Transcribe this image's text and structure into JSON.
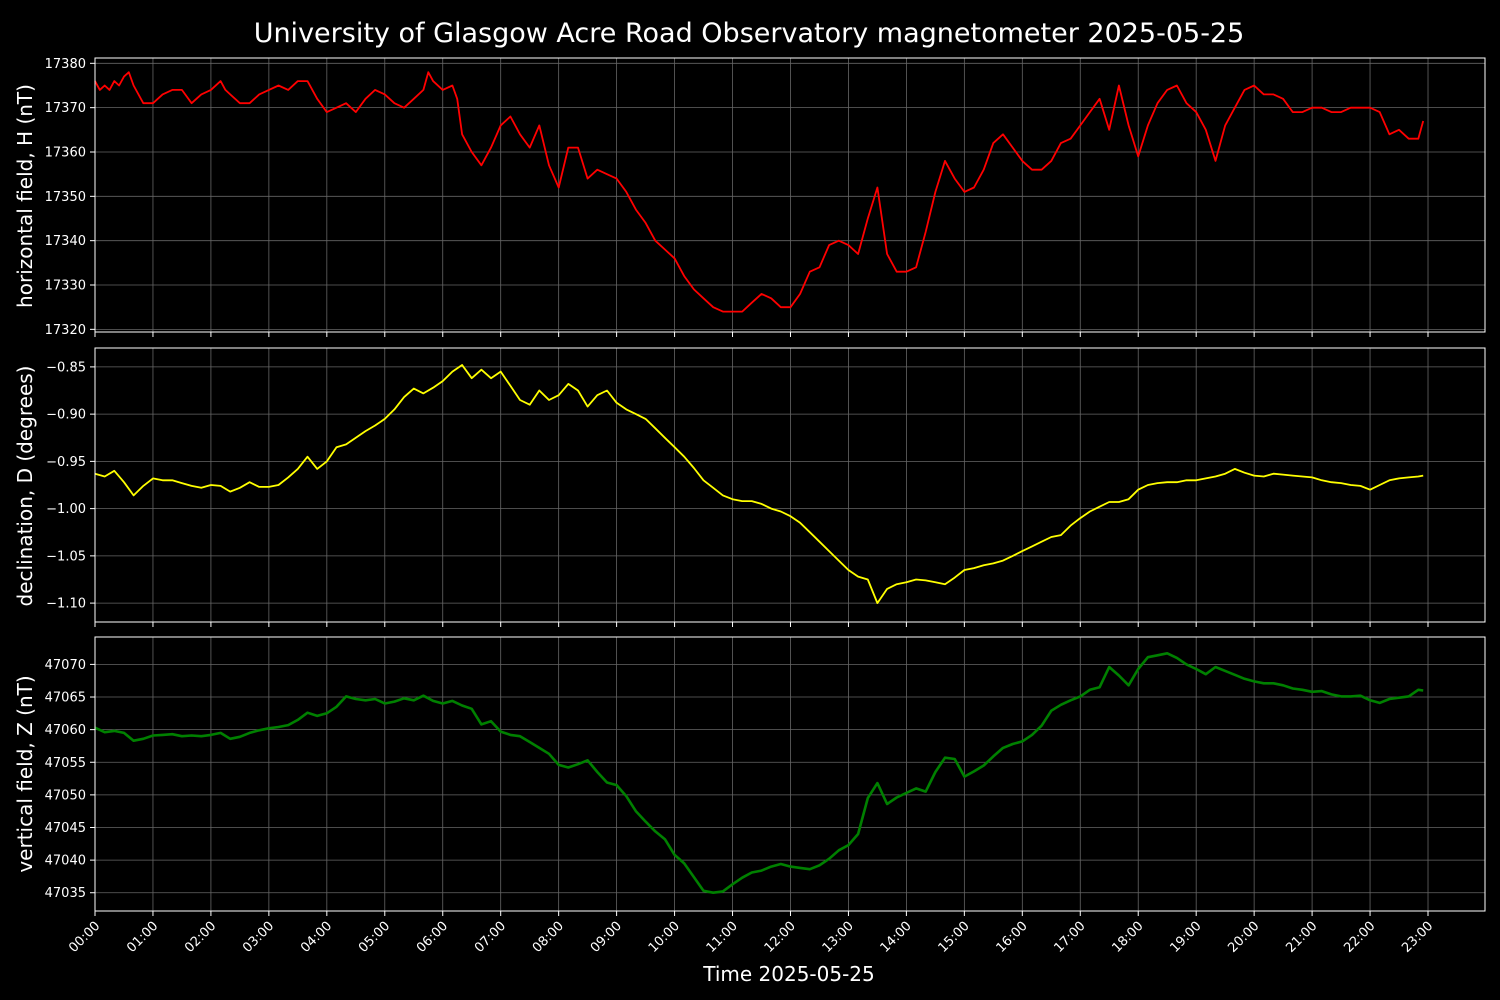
{
  "figure": {
    "title": "University of Glasgow Acre Road Observatory magnetometer 2025-05-25",
    "background": "#000000",
    "foreground": "#ffffff",
    "grid_color": "#666666"
  },
  "chart_data": [
    {
      "type": "line",
      "panel": "top",
      "title": "",
      "xlabel": "",
      "ylabel": "horizontal field, H (nT)",
      "xlim": [
        "00:00",
        "23:59"
      ],
      "ylim": [
        17319.4,
        17381.2
      ],
      "yticks": [
        17320,
        17330,
        17340,
        17350,
        17360,
        17370,
        17380
      ],
      "grid": true,
      "series": [
        {
          "color": "#ff0000",
          "x": [
            "00:00",
            "00:05",
            "00:10",
            "00:15",
            "00:20",
            "00:25",
            "00:30",
            "00:35",
            "00:40",
            "00:50",
            "01:00",
            "01:10",
            "01:20",
            "01:30",
            "01:40",
            "01:45",
            "01:50",
            "02:00",
            "02:10",
            "02:15",
            "02:20",
            "02:30",
            "02:40",
            "02:50",
            "03:00",
            "03:10",
            "03:20",
            "03:30",
            "03:40",
            "03:50",
            "04:00",
            "04:10",
            "04:20",
            "04:30",
            "04:40",
            "04:50",
            "05:00",
            "05:10",
            "05:20",
            "05:30",
            "05:40",
            "05:45",
            "05:50",
            "06:00",
            "06:10",
            "06:15",
            "06:20",
            "06:30",
            "06:40",
            "06:50",
            "07:00",
            "07:10",
            "07:20",
            "07:30",
            "07:40",
            "07:50",
            "08:00",
            "08:10",
            "08:20",
            "08:30",
            "08:40",
            "08:50",
            "09:00",
            "09:10",
            "09:20",
            "09:30",
            "09:40",
            "09:50",
            "10:00",
            "10:10",
            "10:20",
            "10:30",
            "10:40",
            "10:50",
            "11:00",
            "11:10",
            "11:20",
            "11:30",
            "11:40",
            "11:50",
            "12:00",
            "12:10",
            "12:20",
            "12:30",
            "12:40",
            "12:50",
            "13:00",
            "13:10",
            "13:20",
            "13:30",
            "13:40",
            "13:50",
            "14:00",
            "14:10",
            "14:20",
            "14:30",
            "14:40",
            "14:50",
            "15:00",
            "15:10",
            "15:20",
            "15:30",
            "15:40",
            "15:50",
            "16:00",
            "16:10",
            "16:20",
            "16:30",
            "16:40",
            "16:50",
            "17:00",
            "17:10",
            "17:20",
            "17:30",
            "17:40",
            "17:50",
            "18:00",
            "18:10",
            "18:20",
            "18:30",
            "18:40",
            "18:50",
            "19:00",
            "19:10",
            "19:20",
            "19:30",
            "19:40",
            "19:50",
            "20:00",
            "20:10",
            "20:20",
            "20:30",
            "20:40",
            "20:50",
            "21:00",
            "21:10",
            "21:20",
            "21:30",
            "21:40",
            "21:50",
            "22:00",
            "22:10",
            "22:20",
            "22:30",
            "22:40",
            "22:50",
            "22:55"
          ],
          "y": [
            17376,
            17374,
            17375,
            17374,
            17376,
            17375,
            17377,
            17378,
            17375,
            17371,
            17371,
            17373,
            17374,
            17374,
            17371,
            17372,
            17373,
            17374,
            17376,
            17374,
            17373,
            17371,
            17371,
            17373,
            17374,
            17375,
            17374,
            17376,
            17376,
            17372,
            17369,
            17370,
            17371,
            17369,
            17372,
            17374,
            17373,
            17371,
            17370,
            17372,
            17374,
            17378,
            17376,
            17374,
            17375,
            17372,
            17364,
            17360,
            17357,
            17361,
            17366,
            17368,
            17364,
            17361,
            17366,
            17357,
            17352,
            17361,
            17361,
            17354,
            17356,
            17355,
            17354,
            17351,
            17347,
            17344,
            17340,
            17338,
            17336,
            17332,
            17329,
            17327,
            17325,
            17324,
            17324,
            17324,
            17326,
            17328,
            17327,
            17325,
            17325,
            17328,
            17333,
            17334,
            17339,
            17340,
            17339,
            17337,
            17345,
            17352,
            17337,
            17333,
            17333,
            17334,
            17342,
            17351,
            17358,
            17354,
            17351,
            17352,
            17356,
            17362,
            17364,
            17361,
            17358,
            17356,
            17356,
            17358,
            17362,
            17363,
            17366,
            17369,
            17372,
            17365,
            17375,
            17366,
            17359,
            17366,
            17371,
            17374,
            17375,
            17371,
            17369,
            17365,
            17358,
            17366,
            17370,
            17374,
            17375,
            17373,
            17373,
            17372,
            17369,
            17369,
            17370,
            17370,
            17369,
            17369,
            17370,
            17370,
            17370,
            17369,
            17364,
            17365,
            17363,
            17363,
            17367
          ]
        }
      ]
    },
    {
      "type": "line",
      "panel": "middle",
      "title": "",
      "xlabel": "",
      "ylabel": "declination, D (degrees)",
      "xlim": [
        "00:00",
        "23:59"
      ],
      "ylim": [
        -1.12,
        -0.83
      ],
      "yticks": [
        -1.1,
        -1.05,
        -1.0,
        -0.95,
        -0.9,
        -0.85
      ],
      "ytick_labels": [
        "−1.10",
        "−1.05",
        "−1.00",
        "−0.95",
        "−0.90",
        "−0.85"
      ],
      "grid": true,
      "series": [
        {
          "color": "#ffff00",
          "x": [
            "00:00",
            "00:10",
            "00:20",
            "00:30",
            "00:40",
            "00:50",
            "01:00",
            "01:10",
            "01:20",
            "01:30",
            "01:40",
            "01:50",
            "02:00",
            "02:10",
            "02:20",
            "02:30",
            "02:40",
            "02:50",
            "03:00",
            "03:10",
            "03:20",
            "03:30",
            "03:40",
            "03:50",
            "04:00",
            "04:10",
            "04:20",
            "04:30",
            "04:40",
            "04:50",
            "05:00",
            "05:10",
            "05:20",
            "05:30",
            "05:40",
            "05:50",
            "06:00",
            "06:10",
            "06:20",
            "06:30",
            "06:40",
            "06:50",
            "07:00",
            "07:10",
            "07:20",
            "07:30",
            "07:40",
            "07:50",
            "08:00",
            "08:10",
            "08:20",
            "08:30",
            "08:40",
            "08:50",
            "09:00",
            "09:10",
            "09:20",
            "09:30",
            "09:40",
            "09:50",
            "10:00",
            "10:10",
            "10:20",
            "10:30",
            "10:40",
            "10:50",
            "11:00",
            "11:10",
            "11:20",
            "11:30",
            "11:40",
            "11:50",
            "12:00",
            "12:10",
            "12:20",
            "12:30",
            "12:40",
            "12:50",
            "13:00",
            "13:10",
            "13:20",
            "13:30",
            "13:40",
            "13:50",
            "14:00",
            "14:10",
            "14:20",
            "14:30",
            "14:40",
            "14:50",
            "15:00",
            "15:10",
            "15:20",
            "15:30",
            "15:40",
            "15:50",
            "16:00",
            "16:10",
            "16:20",
            "16:30",
            "16:40",
            "16:50",
            "17:00",
            "17:10",
            "17:20",
            "17:30",
            "17:40",
            "17:50",
            "18:00",
            "18:10",
            "18:20",
            "18:30",
            "18:40",
            "18:50",
            "19:00",
            "19:10",
            "19:20",
            "19:30",
            "19:40",
            "19:50",
            "20:00",
            "20:10",
            "20:20",
            "20:30",
            "20:40",
            "20:50",
            "21:00",
            "21:10",
            "21:20",
            "21:30",
            "21:40",
            "21:50",
            "22:00",
            "22:10",
            "22:20",
            "22:30",
            "22:40",
            "22:50",
            "22:55"
          ],
          "y": [
            -0.963,
            -0.966,
            -0.96,
            -0.972,
            -0.986,
            -0.976,
            -0.968,
            -0.97,
            -0.97,
            -0.973,
            -0.976,
            -0.978,
            -0.975,
            -0.976,
            -0.982,
            -0.978,
            -0.972,
            -0.977,
            -0.977,
            -0.975,
            -0.967,
            -0.958,
            -0.945,
            -0.958,
            -0.95,
            -0.935,
            -0.932,
            -0.925,
            -0.918,
            -0.912,
            -0.905,
            -0.895,
            -0.882,
            -0.873,
            -0.878,
            -0.872,
            -0.865,
            -0.855,
            -0.848,
            -0.862,
            -0.853,
            -0.862,
            -0.855,
            -0.87,
            -0.885,
            -0.89,
            -0.875,
            -0.885,
            -0.88,
            -0.868,
            -0.875,
            -0.892,
            -0.88,
            -0.875,
            -0.888,
            -0.895,
            -0.9,
            -0.905,
            -0.915,
            -0.925,
            -0.935,
            -0.945,
            -0.957,
            -0.97,
            -0.978,
            -0.986,
            -0.99,
            -0.992,
            -0.992,
            -0.995,
            -1.0,
            -1.003,
            -1.008,
            -1.015,
            -1.025,
            -1.035,
            -1.045,
            -1.055,
            -1.065,
            -1.072,
            -1.075,
            -1.1,
            -1.085,
            -1.08,
            -1.078,
            -1.075,
            -1.076,
            -1.078,
            -1.08,
            -1.073,
            -1.065,
            -1.063,
            -1.06,
            -1.058,
            -1.055,
            -1.05,
            -1.045,
            -1.04,
            -1.035,
            -1.03,
            -1.028,
            -1.018,
            -1.01,
            -1.003,
            -0.998,
            -0.993,
            -0.993,
            -0.99,
            -0.98,
            -0.975,
            -0.973,
            -0.972,
            -0.972,
            -0.97,
            -0.97,
            -0.968,
            -0.966,
            -0.963,
            -0.958,
            -0.962,
            -0.965,
            -0.966,
            -0.963,
            -0.964,
            -0.965,
            -0.966,
            -0.967,
            -0.97,
            -0.972,
            -0.973,
            -0.975,
            -0.976,
            -0.98,
            -0.975,
            -0.97,
            -0.968,
            -0.967,
            -0.966,
            -0.965
          ]
        }
      ]
    },
    {
      "type": "line",
      "panel": "bottom",
      "title": "",
      "xlabel": "Time 2025-05-25",
      "ylabel": "vertical field, Z (nT)",
      "xlim": [
        "00:00",
        "23:59"
      ],
      "ylim": [
        47032.2,
        47074.2
      ],
      "yticks": [
        47035,
        47040,
        47045,
        47050,
        47055,
        47060,
        47065,
        47070
      ],
      "grid": true,
      "xticks": [
        "00:00",
        "01:00",
        "02:00",
        "03:00",
        "04:00",
        "05:00",
        "06:00",
        "07:00",
        "08:00",
        "09:00",
        "10:00",
        "11:00",
        "12:00",
        "13:00",
        "14:00",
        "15:00",
        "16:00",
        "17:00",
        "18:00",
        "19:00",
        "20:00",
        "21:00",
        "22:00",
        "23:00"
      ],
      "series": [
        {
          "color": "#008000",
          "x": [
            "00:00",
            "00:10",
            "00:20",
            "00:30",
            "00:40",
            "00:50",
            "01:00",
            "01:10",
            "01:20",
            "01:30",
            "01:40",
            "01:50",
            "02:00",
            "02:10",
            "02:20",
            "02:30",
            "02:40",
            "02:50",
            "03:00",
            "03:10",
            "03:20",
            "03:30",
            "03:40",
            "03:50",
            "04:00",
            "04:10",
            "04:20",
            "04:30",
            "04:40",
            "04:50",
            "05:00",
            "05:10",
            "05:20",
            "05:30",
            "05:40",
            "05:50",
            "06:00",
            "06:10",
            "06:20",
            "06:30",
            "06:40",
            "06:50",
            "07:00",
            "07:10",
            "07:20",
            "07:30",
            "07:40",
            "07:50",
            "08:00",
            "08:10",
            "08:20",
            "08:30",
            "08:40",
            "08:50",
            "09:00",
            "09:10",
            "09:20",
            "09:30",
            "09:40",
            "09:50",
            "10:00",
            "10:10",
            "10:20",
            "10:30",
            "10:40",
            "10:50",
            "11:00",
            "11:10",
            "11:20",
            "11:30",
            "11:40",
            "11:50",
            "12:00",
            "12:10",
            "12:20",
            "12:30",
            "12:40",
            "12:50",
            "13:00",
            "13:10",
            "13:20",
            "13:30",
            "13:40",
            "13:50",
            "14:00",
            "14:10",
            "14:20",
            "14:30",
            "14:40",
            "14:50",
            "15:00",
            "15:10",
            "15:20",
            "15:30",
            "15:40",
            "15:50",
            "16:00",
            "16:10",
            "16:20",
            "16:30",
            "16:40",
            "16:50",
            "17:00",
            "17:10",
            "17:20",
            "17:30",
            "17:40",
            "17:50",
            "18:00",
            "18:10",
            "18:20",
            "18:30",
            "18:40",
            "18:50",
            "19:00",
            "19:10",
            "19:20",
            "19:30",
            "19:40",
            "19:50",
            "20:00",
            "20:10",
            "20:20",
            "20:30",
            "20:40",
            "20:50",
            "21:00",
            "21:10",
            "21:20",
            "21:30",
            "21:40",
            "21:50",
            "22:00",
            "22:10",
            "22:20",
            "22:30",
            "22:40",
            "22:50",
            "22:55"
          ],
          "y": [
            47060.3,
            47059.6,
            47059.8,
            47059.5,
            47058.3,
            47058.6,
            47059.1,
            47059.2,
            47059.3,
            47059.0,
            47059.1,
            47059.0,
            47059.2,
            47059.5,
            47058.6,
            47058.9,
            47059.5,
            47059.9,
            47060.2,
            47060.4,
            47060.7,
            47061.5,
            47062.6,
            47062.1,
            47062.5,
            47063.5,
            47065.1,
            47064.7,
            47064.5,
            47064.7,
            47064.0,
            47064.3,
            47064.8,
            47064.5,
            47065.2,
            47064.4,
            47064.0,
            47064.4,
            47063.7,
            47063.2,
            47060.8,
            47061.3,
            47059.7,
            47059.2,
            47059.0,
            47058.1,
            47057.2,
            47056.3,
            47054.6,
            47054.2,
            47054.7,
            47055.3,
            47053.5,
            47051.9,
            47051.5,
            47049.8,
            47047.5,
            47045.9,
            47044.4,
            47043.2,
            47040.8,
            47039.5,
            47037.4,
            47035.3,
            47035.0,
            47035.2,
            47036.3,
            47037.3,
            47038.1,
            47038.4,
            47039.0,
            47039.4,
            47039.0,
            47038.8,
            47038.6,
            47039.2,
            47040.2,
            47041.5,
            47042.3,
            47044.0,
            47049.5,
            47051.8,
            47048.6,
            47049.6,
            47050.3,
            47051.0,
            47050.5,
            47053.5,
            47055.7,
            47055.5,
            47052.8,
            47053.6,
            47054.5,
            47055.9,
            47057.2,
            47057.8,
            47058.2,
            47059.2,
            47060.6,
            47062.9,
            47063.8,
            47064.5,
            47065.1,
            47066.1,
            47066.5,
            47069.6,
            47068.3,
            47066.8,
            47069.3,
            47071.1,
            47071.4,
            47071.7,
            47071.0,
            47070.0,
            47069.3,
            47068.5,
            47069.6,
            47069.0,
            47068.4,
            47067.8,
            47067.4,
            47067.1,
            47067.1,
            47066.8,
            47066.3,
            47066.1,
            47065.8,
            47065.9,
            47065.4,
            47065.1,
            47065.1,
            47065.2,
            47064.5,
            47064.1,
            47064.7,
            47064.9,
            47065.1,
            47066.1,
            47066.0
          ]
        }
      ]
    }
  ]
}
